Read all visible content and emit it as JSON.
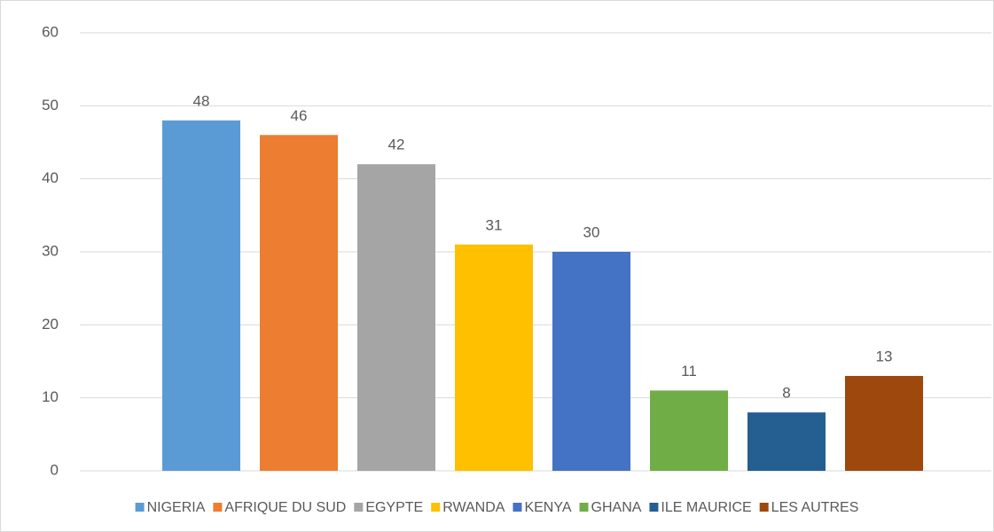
{
  "chart_data": {
    "type": "bar",
    "series": [
      {
        "name": "NIGERIA",
        "color": "#5b9bd5",
        "values": [
          48
        ]
      },
      {
        "name": "AFRIQUE DU SUD",
        "color": "#ed7d31",
        "values": [
          46
        ]
      },
      {
        "name": "EGYPTE",
        "color": "#a5a5a5",
        "values": [
          42
        ]
      },
      {
        "name": "RWANDA",
        "color": "#ffc000",
        "values": [
          31
        ]
      },
      {
        "name": "KENYA",
        "color": "#4472c4",
        "values": [
          30
        ]
      },
      {
        "name": "GHANA",
        "color": "#70ad47",
        "values": [
          11
        ]
      },
      {
        "name": "ILE MAURICE",
        "color": "#255e91",
        "values": [
          8
        ]
      },
      {
        "name": "LES AUTRES",
        "color": "#9e480e",
        "values": [
          13
        ]
      }
    ],
    "ylim": [
      0,
      60
    ],
    "yticks": [
      0,
      10,
      20,
      30,
      40,
      50,
      60
    ],
    "grid": true,
    "legend": "bottom"
  }
}
